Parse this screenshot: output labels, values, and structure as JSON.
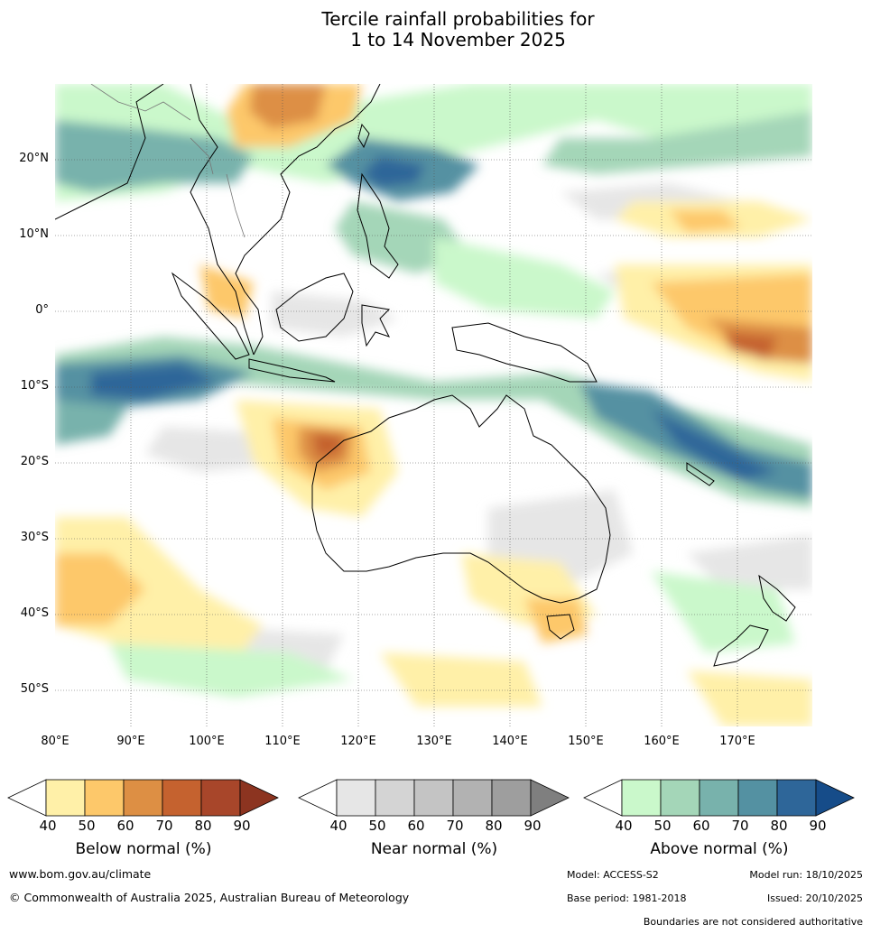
{
  "title": {
    "line1": "Tercile rainfall probabilities for",
    "line2": "1 to 14 November 2025"
  },
  "map": {
    "lat_labels": [
      "20°N",
      "10°N",
      "0°",
      "10°S",
      "20°S",
      "30°S",
      "40°S",
      "50°S"
    ],
    "lon_labels": [
      "80°E",
      "90°E",
      "100°E",
      "110°E",
      "120°E",
      "130°E",
      "140°E",
      "150°E",
      "160°E",
      "170°E"
    ],
    "extent": {
      "lon_min": 80,
      "lon_max": 180,
      "lat_min": -55,
      "lat_max": 30
    }
  },
  "legends": [
    {
      "name": "Below normal (%)",
      "ticks": [
        "40",
        "50",
        "60",
        "70",
        "80",
        "90"
      ],
      "colors": [
        "#fff0a8",
        "#fdc86a",
        "#dd8f44",
        "#c5622f",
        "#a8462a",
        "#8c3420"
      ]
    },
    {
      "name": "Near normal (%)",
      "ticks": [
        "40",
        "50",
        "60",
        "70",
        "80",
        "90"
      ],
      "colors": [
        "#e6e6e6",
        "#d4d4d4",
        "#c4c4c4",
        "#b2b2b2",
        "#9e9e9e",
        "#7f7f7f"
      ]
    },
    {
      "name": "Above normal (%)",
      "ticks": [
        "40",
        "50",
        "60",
        "70",
        "80",
        "90"
      ],
      "colors": [
        "#caf8cb",
        "#a4d6b8",
        "#78b2ac",
        "#5491a2",
        "#2e6699",
        "#164c89"
      ]
    }
  ],
  "footer": {
    "website": "www.bom.gov.au/climate",
    "copyright": "© Commonwealth of Australia 2025, Australian Bureau of Meteorology",
    "model": "Model: ACCESS-S2",
    "model_run": "Model run: 18/10/2025",
    "base_period": "Base period: 1981-2018",
    "issued": "Issued: 20/10/2025",
    "boundaries": "Boundaries are not considered authoritative"
  }
}
